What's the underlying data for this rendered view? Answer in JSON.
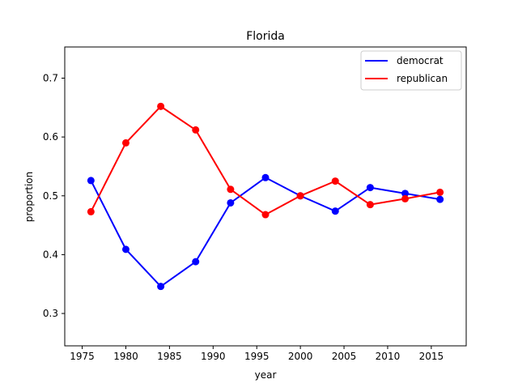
{
  "chart_data": {
    "type": "line",
    "title": "Florida",
    "xlabel": "year",
    "ylabel": "proportion",
    "xlim": [
      1973.0,
      2019.0
    ],
    "ylim": [
      0.245,
      0.753
    ],
    "x_ticks": [
      1975,
      1980,
      1985,
      1990,
      1995,
      2000,
      2005,
      2010,
      2015
    ],
    "y_ticks": [
      0.3,
      0.4,
      0.5,
      0.6,
      0.7
    ],
    "grid": false,
    "legend_position": "top-right",
    "x": [
      1976,
      1980,
      1984,
      1988,
      1992,
      1996,
      2000,
      2004,
      2008,
      2012,
      2016
    ],
    "series": [
      {
        "name": "democrat",
        "color": "#0000ff",
        "marker": "circle",
        "values": [
          0.526,
          0.409,
          0.346,
          0.388,
          0.488,
          0.531,
          0.5,
          0.474,
          0.514,
          0.504,
          0.494
        ]
      },
      {
        "name": "republican",
        "color": "#ff0000",
        "marker": "circle",
        "values": [
          0.473,
          0.59,
          0.652,
          0.612,
          0.511,
          0.468,
          0.5,
          0.525,
          0.485,
          0.495,
          0.506
        ]
      }
    ]
  }
}
